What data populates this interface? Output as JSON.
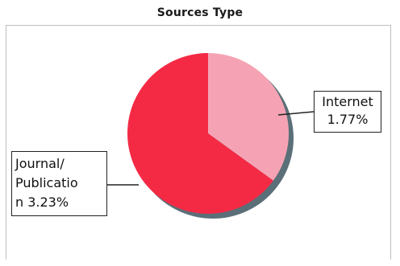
{
  "chart_data": {
    "type": "pie",
    "title": "Sources Type",
    "slices": [
      {
        "label": "Internet",
        "value_text": "1.77%",
        "share": 0.35,
        "color": "#f5a3b4"
      },
      {
        "label": "Journal/ Publicatio n",
        "value_text": "3.23%",
        "share": 0.65,
        "color": "#f42a45"
      }
    ],
    "labels": {
      "internet_line1": "Internet",
      "internet_line2": "1.77%",
      "journal_line1": "Journal/",
      "journal_line2": "Publicatio",
      "journal_line3": "n 3.23%"
    },
    "legend": "none",
    "shadow_color": "#5b6f78"
  }
}
